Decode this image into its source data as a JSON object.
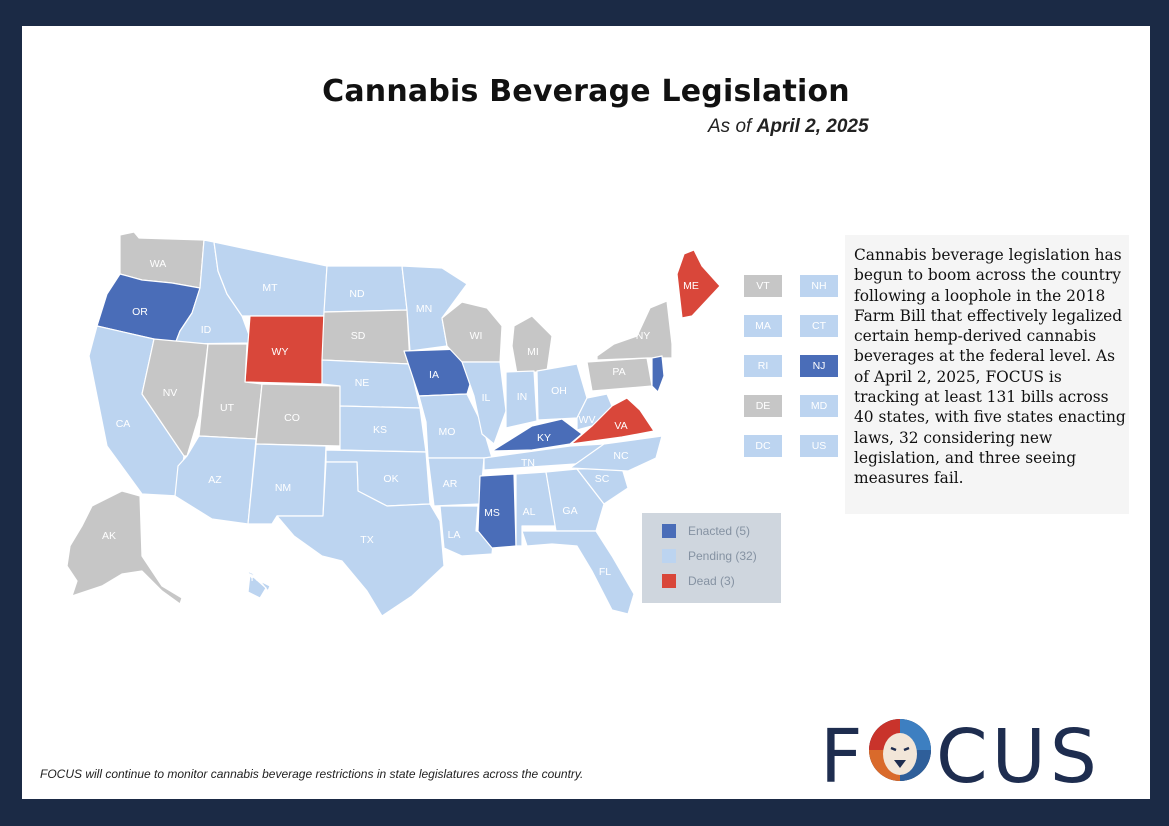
{
  "title": "Cannabis Beverage Legislation",
  "subtitle": {
    "prefix": "As of",
    "date": "April 2, 2025"
  },
  "colors": {
    "enacted": "#4a6db8",
    "pending": "#bcd4f0",
    "dead": "#d9473a",
    "none": "#c6c6c6",
    "frame": "#1b2a45",
    "brand": "#1e2d4f"
  },
  "map": {
    "states": [
      {
        "abbr": "WA",
        "status": "none"
      },
      {
        "abbr": "OR",
        "status": "enacted"
      },
      {
        "abbr": "CA",
        "status": "pending"
      },
      {
        "abbr": "ID",
        "status": "pending"
      },
      {
        "abbr": "NV",
        "status": "none"
      },
      {
        "abbr": "MT",
        "status": "pending"
      },
      {
        "abbr": "WY",
        "status": "dead"
      },
      {
        "abbr": "UT",
        "status": "none"
      },
      {
        "abbr": "CO",
        "status": "none"
      },
      {
        "abbr": "AZ",
        "status": "pending"
      },
      {
        "abbr": "NM",
        "status": "pending"
      },
      {
        "abbr": "ND",
        "status": "pending"
      },
      {
        "abbr": "SD",
        "status": "none"
      },
      {
        "abbr": "NE",
        "status": "pending"
      },
      {
        "abbr": "KS",
        "status": "pending"
      },
      {
        "abbr": "OK",
        "status": "pending"
      },
      {
        "abbr": "TX",
        "status": "pending"
      },
      {
        "abbr": "MN",
        "status": "pending"
      },
      {
        "abbr": "IA",
        "status": "enacted"
      },
      {
        "abbr": "MO",
        "status": "pending"
      },
      {
        "abbr": "AR",
        "status": "pending"
      },
      {
        "abbr": "LA",
        "status": "pending"
      },
      {
        "abbr": "WI",
        "status": "none"
      },
      {
        "abbr": "IL",
        "status": "pending"
      },
      {
        "abbr": "MI",
        "status": "none"
      },
      {
        "abbr": "IN",
        "status": "pending"
      },
      {
        "abbr": "OH",
        "status": "pending"
      },
      {
        "abbr": "KY",
        "status": "enacted"
      },
      {
        "abbr": "TN",
        "status": "pending"
      },
      {
        "abbr": "MS",
        "status": "enacted"
      },
      {
        "abbr": "AL",
        "status": "pending"
      },
      {
        "abbr": "GA",
        "status": "pending"
      },
      {
        "abbr": "FL",
        "status": "pending"
      },
      {
        "abbr": "SC",
        "status": "pending"
      },
      {
        "abbr": "NC",
        "status": "pending"
      },
      {
        "abbr": "VA",
        "status": "dead"
      },
      {
        "abbr": "WV",
        "status": "pending"
      },
      {
        "abbr": "PA",
        "status": "none"
      },
      {
        "abbr": "NY",
        "status": "none"
      },
      {
        "abbr": "ME",
        "status": "dead"
      },
      {
        "abbr": "AK",
        "status": "none"
      },
      {
        "abbr": "HI",
        "status": "pending"
      },
      {
        "abbr": "NJ",
        "status": "enacted"
      }
    ],
    "small_states": [
      {
        "abbr": "VT",
        "status": "none"
      },
      {
        "abbr": "NH",
        "status": "pending"
      },
      {
        "abbr": "MA",
        "status": "pending"
      },
      {
        "abbr": "CT",
        "status": "pending"
      },
      {
        "abbr": "RI",
        "status": "pending"
      },
      {
        "abbr": "NJ",
        "status": "enacted"
      },
      {
        "abbr": "DE",
        "status": "none"
      },
      {
        "abbr": "MD",
        "status": "pending"
      },
      {
        "abbr": "DC",
        "status": "pending"
      },
      {
        "abbr": "US",
        "status": "pending"
      }
    ]
  },
  "legend": [
    {
      "label": "Enacted (5)",
      "status": "enacted"
    },
    {
      "label": "Pending (32)",
      "status": "pending"
    },
    {
      "label": "Dead (3)",
      "status": "dead"
    }
  ],
  "info_text": "Cannabis beverage legislation has begun to boom across the country following a loophole in the 2018 Farm Bill that effectively legalized certain hemp-derived cannabis beverages at the federal level. As of April 2, 2025, FOCUS is tracking at least 131 bills across 40 states, with five states enacting laws, 32 considering new legislation, and three seeing measures fail.",
  "footnote": "FOCUS will continue to monitor cannabis beverage restrictions in state legislatures across the country.",
  "logo": {
    "left": "F",
    "right": "CUS"
  }
}
